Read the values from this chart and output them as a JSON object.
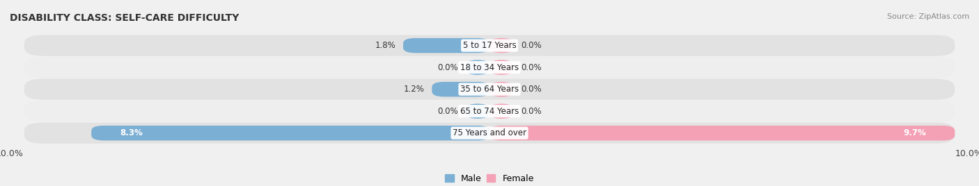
{
  "title": "DISABILITY CLASS: SELF-CARE DIFFICULTY",
  "source": "Source: ZipAtlas.com",
  "categories": [
    "75 Years and over",
    "65 to 74 Years",
    "35 to 64 Years",
    "18 to 34 Years",
    "5 to 17 Years"
  ],
  "male_values": [
    8.3,
    0.0,
    1.2,
    0.0,
    1.8
  ],
  "female_values": [
    9.7,
    0.0,
    0.0,
    0.0,
    0.0
  ],
  "max_val": 10.0,
  "male_color": "#7bafd4",
  "female_color": "#f4a0b5",
  "row_bg_light": "#eeeeee",
  "row_bg_dark": "#e2e2e2",
  "fig_bg": "#f0f0f0",
  "label_color": "#333333",
  "title_fontsize": 10,
  "value_fontsize": 8.5,
  "cat_fontsize": 8.5,
  "source_fontsize": 8,
  "axis_tick_fontsize": 9,
  "legend_fontsize": 9,
  "min_bar_val": 0.5
}
